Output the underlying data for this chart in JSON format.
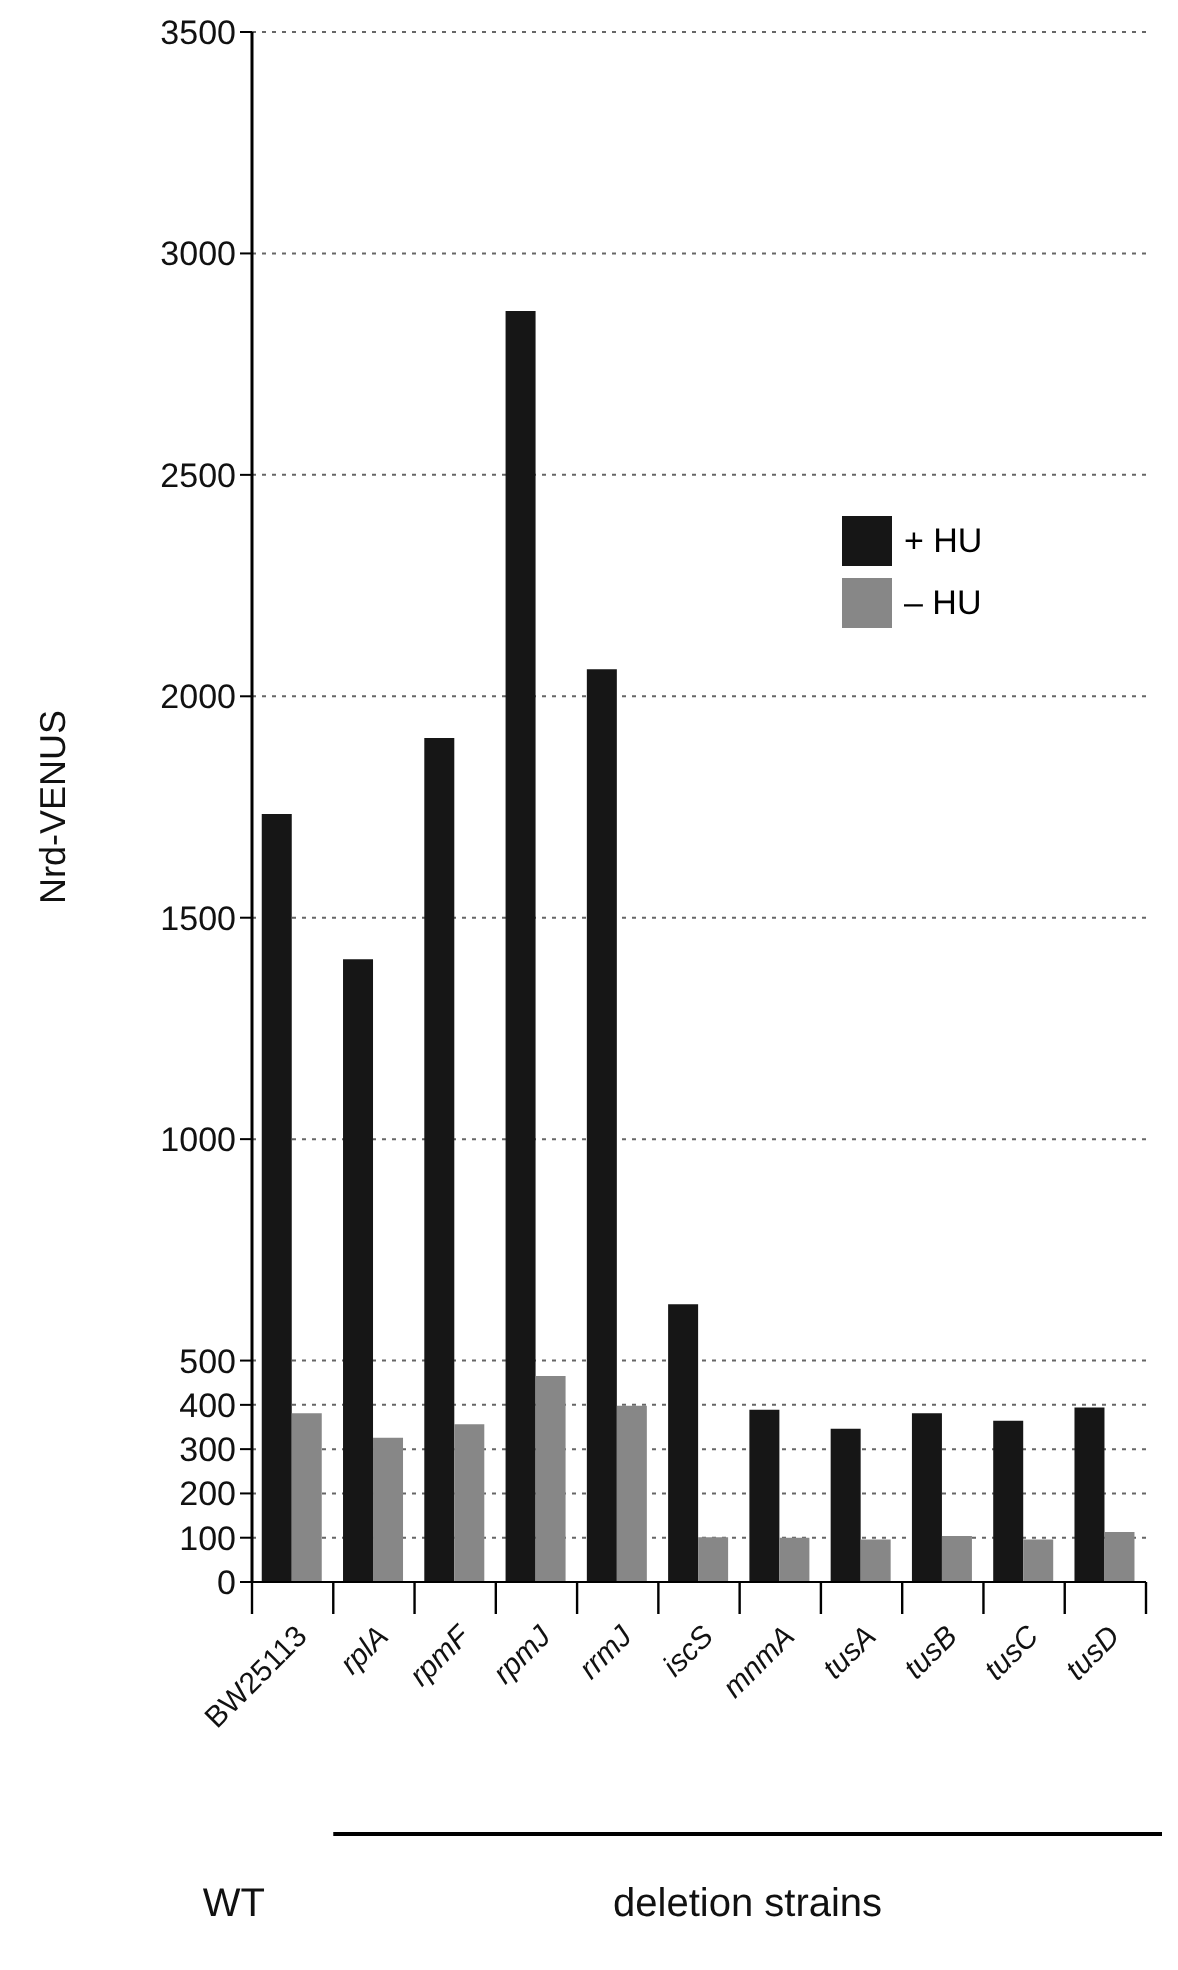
{
  "chart_data": {
    "type": "bar",
    "ylabel": "Nrd-VENUS",
    "categories": [
      "BW25113",
      "rplA",
      "rpmF",
      "rpmJ",
      "rrmJ",
      "iscS",
      "mnmA",
      "tusA",
      "tusB",
      "tusC",
      "tusD"
    ],
    "series": [
      {
        "name": "+ HU",
        "color": "#161616",
        "values": [
          1734,
          1406,
          1906,
          2870,
          2061,
          627,
          389,
          346,
          381,
          364,
          394
        ]
      },
      {
        "name": "– HU",
        "color": "#878787",
        "values": [
          381,
          326,
          356,
          465,
          398,
          101,
          100,
          96,
          104,
          96,
          113
        ]
      }
    ],
    "ylim": [
      0,
      3500
    ],
    "yticks": [
      0,
      100,
      200,
      300,
      400,
      500,
      1000,
      1500,
      2000,
      2500,
      3000,
      3500
    ],
    "grid": "y",
    "legend": "right",
    "annotations": [
      "WT",
      "deletion strains"
    ]
  }
}
